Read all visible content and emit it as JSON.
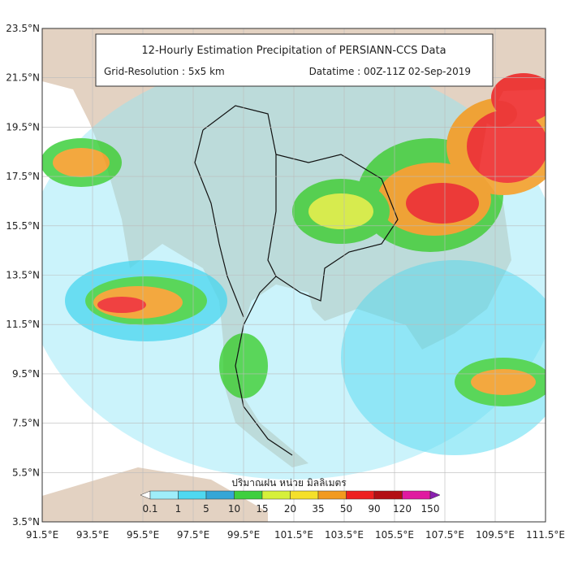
{
  "header": {
    "title": "12-Hourly Estimation Precipitation of PERSIANN-CCS Data",
    "resolution": "Grid-Resolution : 5x5 km",
    "datetime": "Datatime : 00Z-11Z 02-Sep-2019"
  },
  "map": {
    "lon_range": [
      91.5,
      111.5
    ],
    "lat_range": [
      3.5,
      23.5
    ],
    "lat_ticks": [
      {
        "value": 23.5,
        "label": "23.5°N"
      },
      {
        "value": 21.5,
        "label": "21.5°N"
      },
      {
        "value": 19.5,
        "label": "19.5°N"
      },
      {
        "value": 17.5,
        "label": "17.5°N"
      },
      {
        "value": 15.5,
        "label": "15.5°N"
      },
      {
        "value": 13.5,
        "label": "13.5°N"
      },
      {
        "value": 11.5,
        "label": "11.5°N"
      },
      {
        "value": 9.5,
        "label": "9.5°N"
      },
      {
        "value": 7.5,
        "label": "7.5°N"
      },
      {
        "value": 5.5,
        "label": "5.5°N"
      },
      {
        "value": 3.5,
        "label": "3.5°N"
      }
    ],
    "lon_ticks": [
      {
        "value": 91.5,
        "label": "91.5°E"
      },
      {
        "value": 93.5,
        "label": "93.5°E"
      },
      {
        "value": 95.5,
        "label": "95.5°E"
      },
      {
        "value": 97.5,
        "label": "97.5°E"
      },
      {
        "value": 99.5,
        "label": "99.5°E"
      },
      {
        "value": 101.5,
        "label": "101.5°E"
      },
      {
        "value": 103.5,
        "label": "103.5°E"
      },
      {
        "value": 105.5,
        "label": "105.5°E"
      },
      {
        "value": 107.5,
        "label": "107.5°E"
      },
      {
        "value": 109.5,
        "label": "109.5°E"
      },
      {
        "value": 111.5,
        "label": "111.5°E"
      }
    ]
  },
  "legend": {
    "title": "ปริมาณฝน หน่วย มิลลิเมตร",
    "ticks": [
      0.1,
      1,
      5,
      10,
      15,
      20,
      35,
      50,
      90,
      120,
      150
    ],
    "colors": [
      "#ffffff",
      "#9feefa",
      "#4fd8f0",
      "#35a6d6",
      "#3ecf3e",
      "#d6f03a",
      "#f5e02a",
      "#f29a1e",
      "#ee2020",
      "#b30f14",
      "#e01aa0",
      "#8a1fb0"
    ]
  }
}
